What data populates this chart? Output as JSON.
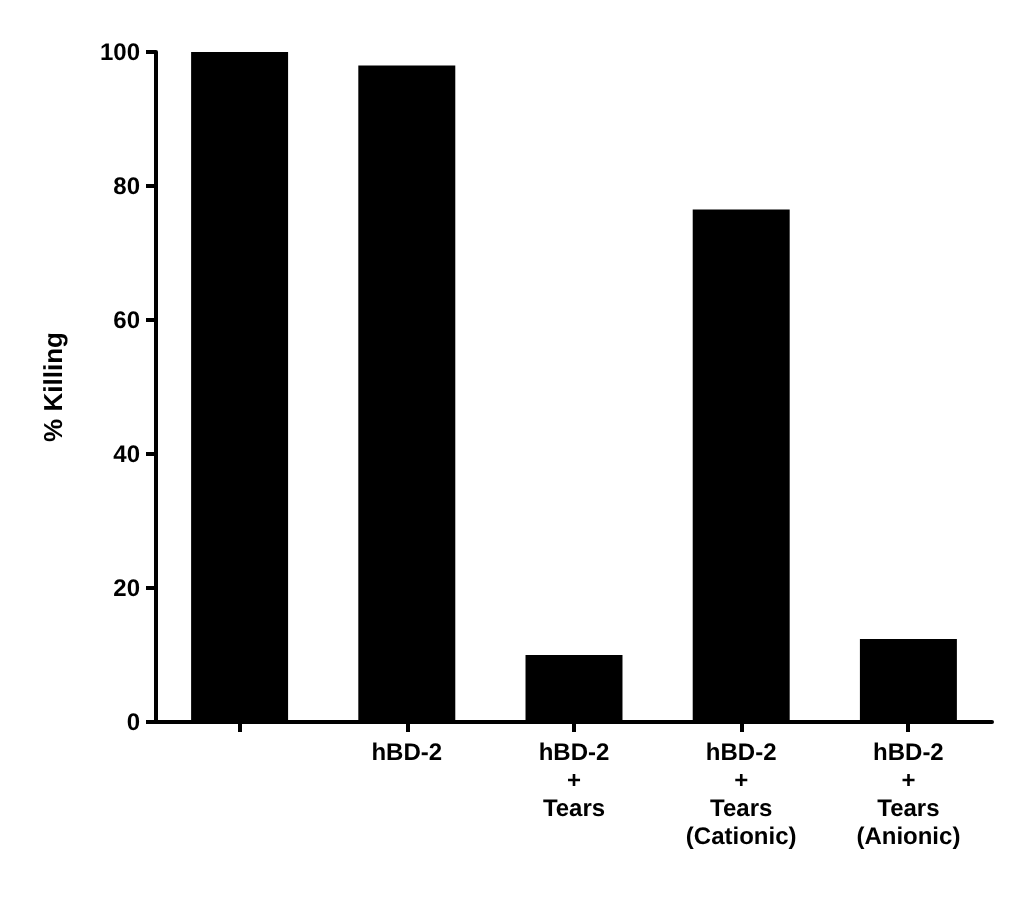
{
  "chart_data": {
    "type": "bar",
    "ylabel": "% Killing",
    "categories": [
      null,
      "hBD-2",
      "hBD-2\n+\nTears",
      "hBD-2\n+\nTears\n(Cationic)",
      "hBD-2\n+\nTears\n(Anionic)"
    ],
    "values": [
      100,
      98,
      10,
      76.5,
      12.4
    ],
    "color": "#000000",
    "ylim": [
      0,
      100
    ],
    "yticks": [
      0,
      20,
      40,
      60,
      80,
      100
    ],
    "grid": false
  }
}
